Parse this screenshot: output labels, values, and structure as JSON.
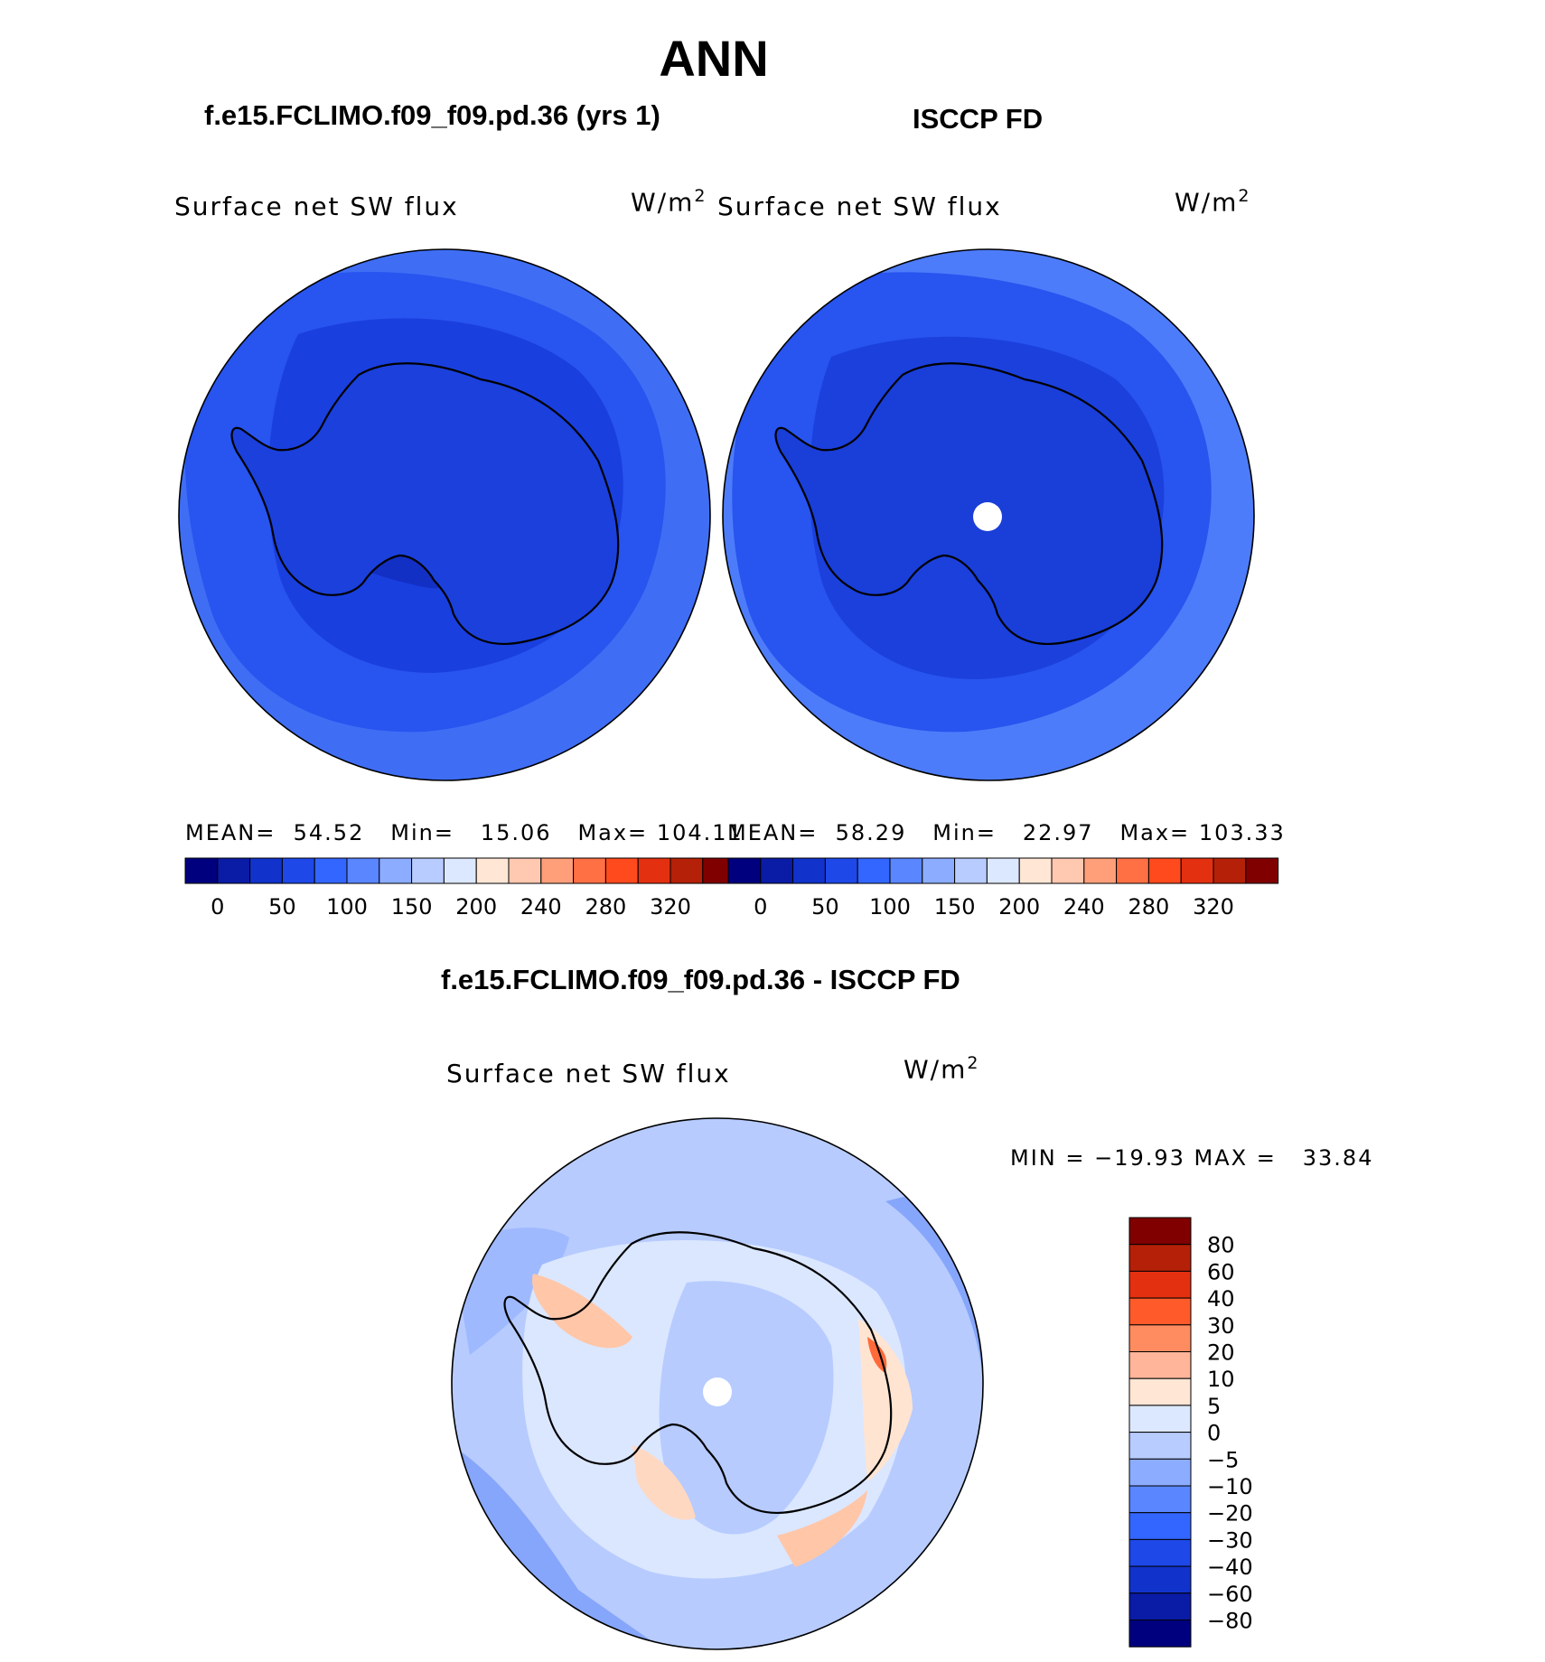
{
  "figure": {
    "title": "ANN",
    "colors": {
      "ramp": [
        "#00007f",
        "#0a1ba6",
        "#1133cc",
        "#1e48e8",
        "#3366ff",
        "#5a86ff",
        "#8cacff",
        "#b8ccff",
        "#dce8ff",
        "#ffe6d5",
        "#ffc8b0",
        "#ff9f7a",
        "#ff7044",
        "#ff4a1e",
        "#e33010",
        "#b52008",
        "#800000"
      ],
      "diff_ramp": [
        "#00007f",
        "#0a1ba6",
        "#1133cc",
        "#1e48e8",
        "#3366ff",
        "#5a86ff",
        "#8cacff",
        "#b8ccff",
        "#dce8ff",
        "#ffe6d5",
        "#ffb599",
        "#ff8c60",
        "#ff5a2a",
        "#e33010",
        "#b52008",
        "#800000"
      ]
    }
  },
  "panels": {
    "model": {
      "title": "f.e15.FCLIMO.f09_f09.pd.36 (yrs 1)",
      "variable": "Surface net SW flux",
      "units": "W/m",
      "units_sup": "2",
      "mean_label": "MEAN=",
      "mean": "54.52",
      "min_label": "Min=",
      "min": "15.06",
      "max_label": "Max=",
      "max": "104.11"
    },
    "obs": {
      "title": "ISCCP FD",
      "variable": "Surface net SW flux",
      "units": "W/m",
      "units_sup": "2",
      "mean_label": "MEAN=",
      "mean": "58.29",
      "min_label": "Min=",
      "min": "22.97",
      "max_label": "Max=",
      "max": "103.33"
    },
    "diff": {
      "title": "f.e15.FCLIMO.f09_f09.pd.36 - ISCCP FD",
      "variable": "Surface net SW flux",
      "units": "W/m",
      "units_sup": "2",
      "minmax": "MIN = −19.93 MAX =",
      "max_value": "33.84"
    }
  },
  "colorbars": {
    "abs_ticks": [
      "0",
      "50",
      "100",
      "150",
      "200",
      "240",
      "280",
      "320"
    ],
    "diff_ticks": [
      "80",
      "60",
      "40",
      "30",
      "20",
      "10",
      "5",
      "0",
      "−5",
      "−10",
      "−20",
      "−30",
      "−40",
      "−60",
      "−80"
    ]
  }
}
